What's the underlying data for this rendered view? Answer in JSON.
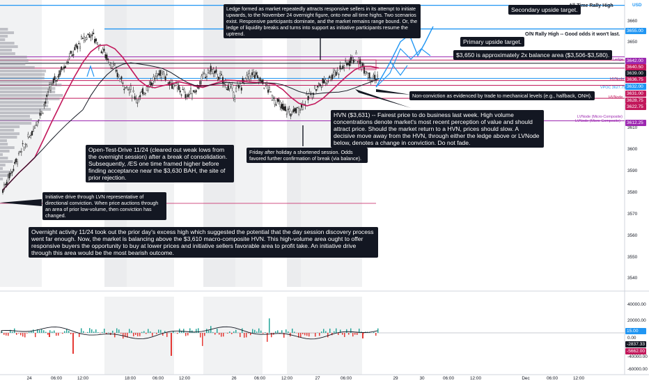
{
  "colors": {
    "blue": "#2196f3",
    "red": "#c2185b",
    "purple": "#9c27b0",
    "black": "#131722",
    "session": "#e6e7ea",
    "candle": "#222222"
  },
  "chart_data": {
    "type": "candlestick",
    "currency": "USD",
    "y_ticks": [
      3540,
      3550,
      3560,
      3570,
      3580,
      3590,
      3600,
      3610,
      3620,
      3630,
      3640,
      3650,
      3660
    ],
    "x_ticks": [
      "24",
      "06:00",
      "12:00",
      "18:00",
      "25",
      "06:00",
      "12:00",
      "18:00",
      "26",
      "06:00",
      "12:00",
      "18:00",
      "27",
      "06:00",
      "29",
      "30",
      "06:00",
      "12:00",
      "Dec",
      "06:00",
      "12:00"
    ],
    "levels": [
      {
        "label": "All-Time Rally High",
        "price": 3666.0,
        "color": "#2196f3",
        "tag": "3666.00"
      },
      {
        "label": "O/N Rally High -- Good odds it won't last.",
        "price": 3655.0,
        "color": "#2196f3",
        "tag": "3655.00"
      },
      {
        "label": "Ledge",
        "price": 3642.0,
        "color": "#9c27b0",
        "tag": "3642.00"
      },
      {
        "label": "",
        "price": 3640.5,
        "color": "#c2185b",
        "tag": "3640.50"
      },
      {
        "label": "",
        "price": 3639.0,
        "color": "#131722",
        "tag": "3639.00"
      },
      {
        "label": "HVNode",
        "price": 3636.75,
        "color": "#c2185b",
        "tag": "3636.75"
      },
      {
        "label": "",
        "price": 3632.0,
        "color": "#2196f3",
        "tag": "3632.00"
      },
      {
        "label": "",
        "price": 3631.0,
        "color": "#c2185b",
        "tag": "3631.00"
      },
      {
        "label": "HVNode",
        "price": 3628.75,
        "color": "#c2185b",
        "tag": "3628.75"
      },
      {
        "label": "",
        "price": 3622.75,
        "color": "#c2185b",
        "tag": "3622.75"
      },
      {
        "label": "LVNode (Micro-Composite)",
        "price": 3612.25,
        "color": "#9c27b0",
        "tag": "3612.25"
      }
    ],
    "vwap_label": "VPOC 3627.75",
    "volume_axis": [
      "40000.00",
      "20000.00",
      "0.00",
      "-20000.00",
      "-40000.00",
      "-60000.00"
    ],
    "volume_tags": [
      "15.00",
      "0.00",
      "-2837.33",
      "-5662.00"
    ],
    "price_path": [
      3580,
      3588,
      3596,
      3602,
      3610,
      3618,
      3628,
      3634,
      3640,
      3645,
      3650,
      3653,
      3648,
      3642,
      3636,
      3630,
      3626,
      3622,
      3628,
      3632,
      3635,
      3630,
      3627,
      3624,
      3626,
      3632,
      3636,
      3633,
      3629,
      3625,
      3630,
      3634,
      3632,
      3628,
      3622,
      3618,
      3616,
      3618,
      3622,
      3627,
      3630,
      3633,
      3636,
      3639,
      3642,
      3638,
      3633,
      3632
    ]
  },
  "notes": {
    "ledge": "Ledge formed as market repeatedly attracts responsive sellers in its attempt to initiate upwards, to the November 24 overnight figure, onto new all time highs. Two scenarios exist. Responsive participants dominate, and the market remains range bound. Or, the ledge of liquidity breaks and turns into support as initiative participants resume the uptrend.",
    "secondary": "Secondary upside target.",
    "primary": "Primary upside target.",
    "balance": "$3,650 is approximately 2x balance area ($3,506-$3,580).",
    "nonconv": "Non-conviction as evidenced by trade to mechanical levels (e.g., halfback, ONH).",
    "hvn": "HVN ($3,631) -- Fairest price to do business last week. High volume concentrations denote market's most recent perception of value and should attract price. Should the market return to a HVN, prices should slow. A decisive move away from the HVN, through either the ledge above or LVNode below, denotes a change in conviction. Do not fade.",
    "otd": "Open-Test-Drive 11/24 (cleared out weak lows from the overnight session) after a break of consolidation. Subsequently, /ES one time framed higher before finding acceptance near the $3,630 BAH, the site of prior rejection.",
    "friday": "Friday after holiday a shortened session. Odds favored further confirmation of break (via balance).",
    "initiative": "Initiative drive through LVN representative of directional conviction. When price auctions through an area of prior low-volume, then conviction has changed.",
    "overnight": "Overnight activity 11/24 took out the prior day's excess high which suggested the potential that the day session discovery process went far enough. Now, the market is balancing above the $3,610 macro-composite HVN. This high-volume area ought to offer responsive buyers the opportunity to buy at lower prices and initiative sellers favorable area to profit take. An initiative drive through this area would be the most bearish outcome."
  }
}
